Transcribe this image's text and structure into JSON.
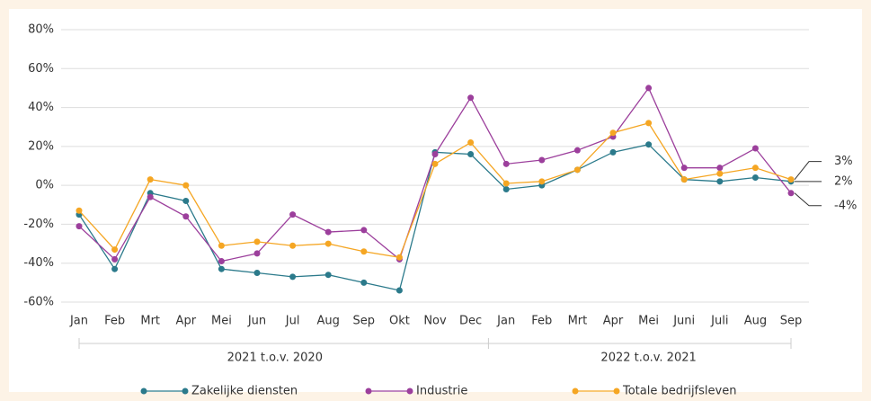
{
  "chart_data": {
    "type": "line",
    "categories": [
      "Jan",
      "Feb",
      "Mrt",
      "Apr",
      "Mei",
      "Jun",
      "Jul",
      "Aug",
      "Sep",
      "Okt",
      "Nov",
      "Dec",
      "Jan",
      "Feb",
      "Mrt",
      "Apr",
      "Mei",
      "Juni",
      "Juli",
      "Aug",
      "Sep"
    ],
    "groups": [
      {
        "label": "2021 t.o.v. 2020",
        "span": [
          0,
          11
        ]
      },
      {
        "label": "2022 t.o.v. 2021",
        "span": [
          12,
          20
        ]
      }
    ],
    "series": [
      {
        "name": "Zakelijke diensten",
        "color": "#2b7a8b",
        "values": [
          -15,
          -43,
          -4,
          -8,
          -43,
          -45,
          -47,
          -46,
          -50,
          -54,
          17,
          16,
          -2,
          0,
          8,
          17,
          21,
          3,
          2,
          4,
          2
        ],
        "value_labels": [
          null,
          null,
          null,
          null,
          null,
          null,
          null,
          null,
          null,
          null,
          null,
          null,
          null,
          null,
          null,
          null,
          null,
          null,
          null,
          null,
          "2%"
        ]
      },
      {
        "name": "Industrie",
        "color": "#9c3f9c",
        "values": [
          -21,
          -38,
          -6,
          -16,
          -39,
          -35,
          -15,
          -24,
          -23,
          -38,
          16,
          45,
          11,
          13,
          18,
          25,
          50,
          9,
          9,
          19,
          -4
        ],
        "value_labels": [
          null,
          null,
          null,
          null,
          null,
          null,
          null,
          null,
          null,
          null,
          null,
          null,
          null,
          null,
          null,
          null,
          null,
          null,
          null,
          null,
          "-4%"
        ]
      },
      {
        "name": "Totale bedrijfsleven",
        "color": "#f5a623",
        "values": [
          -13,
          -33,
          3,
          0,
          -31,
          -29,
          -31,
          -30,
          -34,
          -37,
          11,
          22,
          1,
          2,
          8,
          27,
          32,
          3,
          6,
          9,
          3
        ],
        "value_labels": [
          null,
          null,
          null,
          null,
          null,
          null,
          null,
          null,
          null,
          null,
          null,
          null,
          null,
          null,
          null,
          null,
          null,
          null,
          null,
          null,
          "3%"
        ]
      }
    ],
    "ylim": [
      -60,
      80
    ],
    "yticks": [
      {
        "value": -60,
        "label": "-60%"
      },
      {
        "value": -40,
        "label": "-40%"
      },
      {
        "value": -20,
        "label": "-20%"
      },
      {
        "value": 0,
        "label": "0%"
      },
      {
        "value": 20,
        "label": "20%"
      },
      {
        "value": 40,
        "label": "40%"
      },
      {
        "value": 60,
        "label": "60%"
      },
      {
        "value": 80,
        "label": "80%"
      }
    ],
    "grid": true
  }
}
